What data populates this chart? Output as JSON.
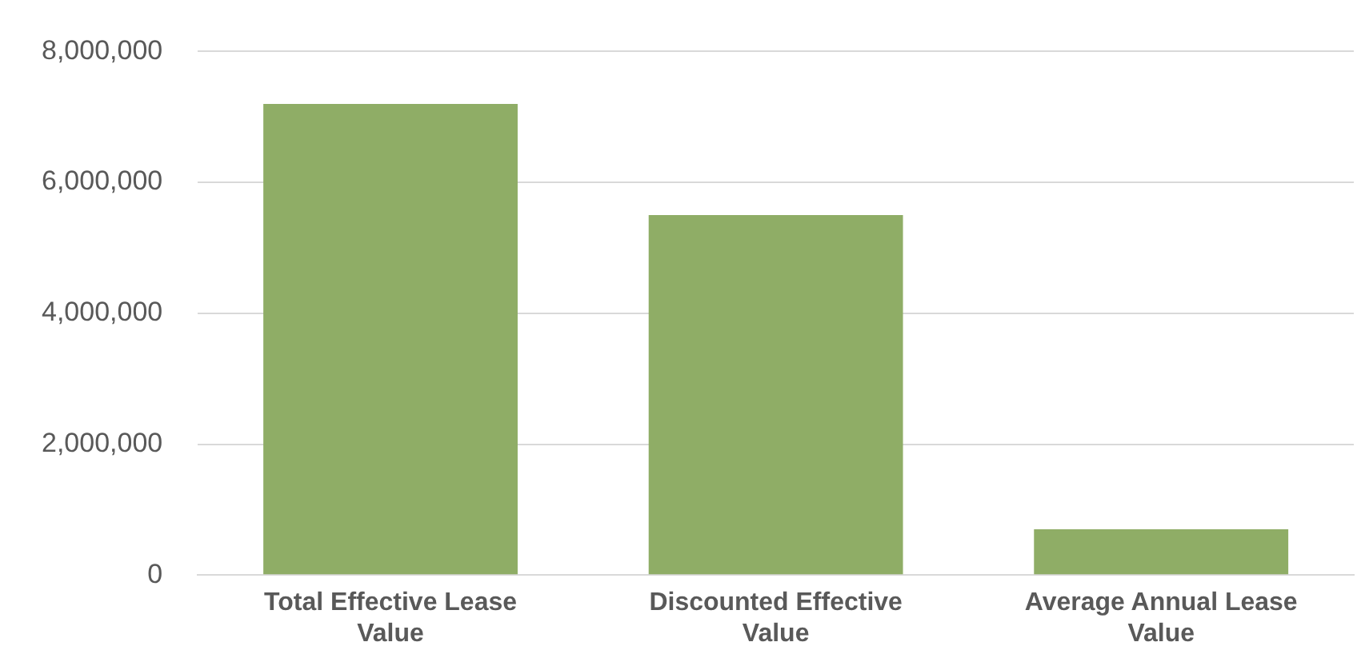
{
  "chart_data": {
    "type": "bar",
    "categories": [
      "Total Effective Lease Value",
      "Discounted Effective Value",
      "Average Annual Lease Value"
    ],
    "values": [
      7200000,
      5500000,
      700000
    ],
    "color": "#8fad66",
    "ylim": [
      0,
      8000000
    ],
    "yticks": [
      0,
      {
        "value": 2000000,
        "label": "2,000,000"
      },
      {
        "value": 4000000,
        "label": "4,000,000"
      },
      {
        "value": 6000000,
        "label": "6,000,000"
      },
      {
        "value": 8000000,
        "label": "8,000,000"
      }
    ],
    "grid": "y"
  }
}
